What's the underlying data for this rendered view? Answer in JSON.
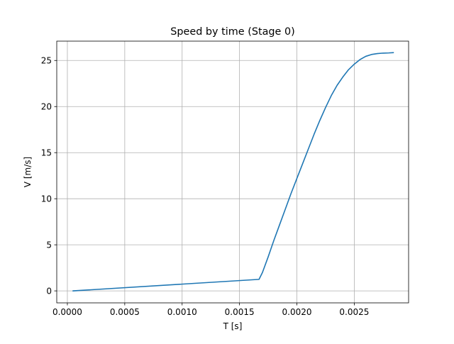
{
  "chart_data": {
    "type": "line",
    "title": "Speed by time (Stage 0)",
    "xlabel": "T [s]",
    "ylabel": "V [m/s]",
    "xlim": [
      -9.25e-05,
      0.0029735
    ],
    "ylim": [
      -1.3,
      27.1
    ],
    "xticks": [
      0.0,
      0.0005,
      0.001,
      0.0015,
      0.002,
      0.0025
    ],
    "xtick_labels": [
      "0.0000",
      "0.0005",
      "0.0010",
      "0.0015",
      "0.0020",
      "0.0025"
    ],
    "yticks": [
      0,
      5,
      10,
      15,
      20,
      25
    ],
    "ytick_labels": [
      "0",
      "5",
      "10",
      "15",
      "20",
      "25"
    ],
    "grid": true,
    "legend": "none",
    "line_color": "#1f77b4",
    "series": [
      {
        "x": [
          5e-05,
          0.00167,
          0.0017,
          0.00175,
          0.0018,
          0.00185,
          0.0019,
          0.00195,
          0.002,
          0.00205,
          0.0021,
          0.00215,
          0.0022,
          0.00225,
          0.0023,
          0.00235,
          0.0024,
          0.00245,
          0.0025,
          0.00255,
          0.0026,
          0.00265,
          0.0027,
          0.00275,
          0.0028,
          0.00284
        ],
        "y": [
          0.0,
          1.25,
          2.0,
          3.7,
          5.5,
          7.2,
          8.9,
          10.6,
          12.2,
          13.8,
          15.4,
          17.0,
          18.5,
          19.9,
          21.2,
          22.3,
          23.2,
          24.0,
          24.6,
          25.1,
          25.45,
          25.65,
          25.75,
          25.8,
          25.82,
          25.85
        ]
      }
    ]
  }
}
